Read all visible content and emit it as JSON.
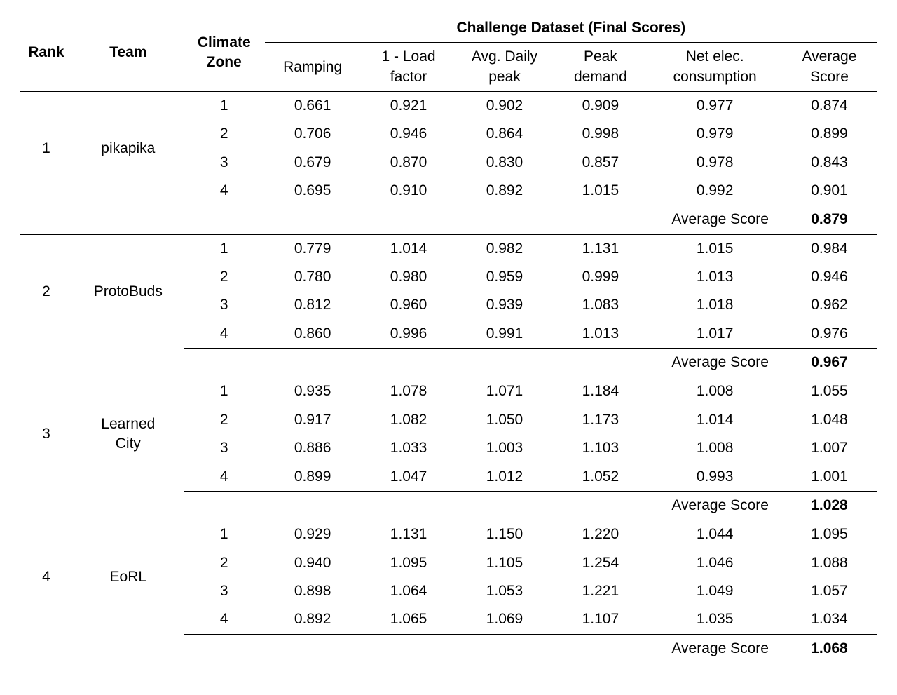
{
  "header": {
    "super": "Challenge Dataset (Final Scores)",
    "rank": "Rank",
    "team": "Team",
    "zone_line1": "Climate",
    "zone_line2": "Zone",
    "ramping": "Ramping",
    "load_line1": "1 - Load",
    "load_line2": "factor",
    "daily_line1": "Avg. Daily",
    "daily_line2": "peak",
    "peak_line1": "Peak",
    "peak_line2": "demand",
    "net_line1": "Net elec.",
    "net_line2": "consumption",
    "avg_line1": "Average",
    "avg_line2": "Score",
    "summary_label": "Average Score"
  },
  "groups": [
    {
      "rank": "1",
      "team": "pikapika",
      "rows": [
        {
          "zone": "1",
          "ramping": "0.661",
          "load": "0.921",
          "daily": "0.902",
          "peak": "0.909",
          "net": "0.977",
          "avg": "0.874"
        },
        {
          "zone": "2",
          "ramping": "0.706",
          "load": "0.946",
          "daily": "0.864",
          "peak": "0.998",
          "net": "0.979",
          "avg": "0.899"
        },
        {
          "zone": "3",
          "ramping": "0.679",
          "load": "0.870",
          "daily": "0.830",
          "peak": "0.857",
          "net": "0.978",
          "avg": "0.843"
        },
        {
          "zone": "4",
          "ramping": "0.695",
          "load": "0.910",
          "daily": "0.892",
          "peak": "1.015",
          "net": "0.992",
          "avg": "0.901"
        }
      ],
      "summary": "0.879"
    },
    {
      "rank": "2",
      "team": "ProtoBuds",
      "rows": [
        {
          "zone": "1",
          "ramping": "0.779",
          "load": "1.014",
          "daily": "0.982",
          "peak": "1.131",
          "net": "1.015",
          "avg": "0.984"
        },
        {
          "zone": "2",
          "ramping": "0.780",
          "load": "0.980",
          "daily": "0.959",
          "peak": "0.999",
          "net": "1.013",
          "avg": "0.946"
        },
        {
          "zone": "3",
          "ramping": "0.812",
          "load": "0.960",
          "daily": "0.939",
          "peak": "1.083",
          "net": "1.018",
          "avg": "0.962"
        },
        {
          "zone": "4",
          "ramping": "0.860",
          "load": "0.996",
          "daily": "0.991",
          "peak": "1.013",
          "net": "1.017",
          "avg": "0.976"
        }
      ],
      "summary": "0.967"
    },
    {
      "rank": "3",
      "team_line1": "Learned",
      "team_line2": "City",
      "rows": [
        {
          "zone": "1",
          "ramping": "0.935",
          "load": "1.078",
          "daily": "1.071",
          "peak": "1.184",
          "net": "1.008",
          "avg": "1.055"
        },
        {
          "zone": "2",
          "ramping": "0.917",
          "load": "1.082",
          "daily": "1.050",
          "peak": "1.173",
          "net": "1.014",
          "avg": "1.048"
        },
        {
          "zone": "3",
          "ramping": "0.886",
          "load": "1.033",
          "daily": "1.003",
          "peak": "1.103",
          "net": "1.008",
          "avg": "1.007"
        },
        {
          "zone": "4",
          "ramping": "0.899",
          "load": "1.047",
          "daily": "1.012",
          "peak": "1.052",
          "net": "0.993",
          "avg": "1.001"
        }
      ],
      "summary": "1.028"
    },
    {
      "rank": "4",
      "team": "EoRL",
      "rows": [
        {
          "zone": "1",
          "ramping": "0.929",
          "load": "1.131",
          "daily": "1.150",
          "peak": "1.220",
          "net": "1.044",
          "avg": "1.095"
        },
        {
          "zone": "2",
          "ramping": "0.940",
          "load": "1.095",
          "daily": "1.105",
          "peak": "1.254",
          "net": "1.046",
          "avg": "1.088"
        },
        {
          "zone": "3",
          "ramping": "0.898",
          "load": "1.064",
          "daily": "1.053",
          "peak": "1.221",
          "net": "1.049",
          "avg": "1.057"
        },
        {
          "zone": "4",
          "ramping": "0.892",
          "load": "1.065",
          "daily": "1.069",
          "peak": "1.107",
          "net": "1.035",
          "avg": "1.034"
        }
      ],
      "summary": "1.068"
    }
  ]
}
